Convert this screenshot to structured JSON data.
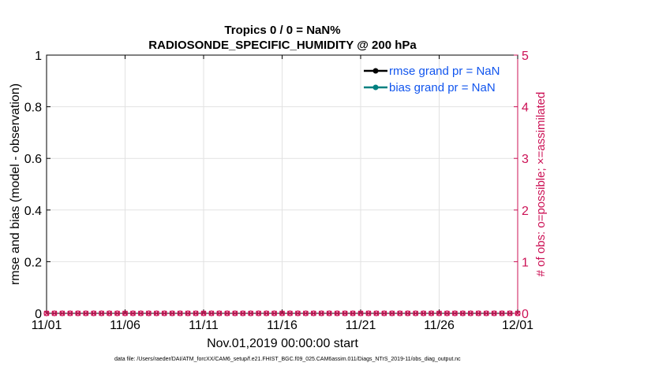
{
  "chart_data": {
    "type": "line",
    "title": "Tropics 0 / 0 = NaN%",
    "subtitle": "RADIOSONDE_SPECIFIC_HUMIDITY @ 200 hPa",
    "xlabel": "Nov.01,2019 00:00:00 start",
    "ylabel": "rmse and bias (model - observation)",
    "y2label": "# of obs: o=possible; ×=assimilated",
    "x_ticks": [
      "11/01",
      "11/06",
      "11/11",
      "11/16",
      "11/21",
      "11/26",
      "12/01"
    ],
    "y_ticks": [
      "0",
      "0.2",
      "0.4",
      "0.6",
      "0.8",
      "1"
    ],
    "y2_ticks": [
      "0",
      "1",
      "2",
      "3",
      "4",
      "5"
    ],
    "xlim": [
      0,
      30
    ],
    "ylim": [
      0,
      1
    ],
    "y2lim": [
      0,
      5
    ],
    "grid": true,
    "legend_position": "top-right",
    "series": [
      {
        "name": "rmse grand pr = NaN",
        "color": "#000000",
        "marker": "circle",
        "values": []
      },
      {
        "name": "bias grand pr = NaN",
        "color": "#008080",
        "marker": "circle",
        "values": []
      },
      {
        "name": "possible obs",
        "color": "#cc1155",
        "marker": "circle",
        "axis": "right",
        "x": [
          0,
          0.5,
          1,
          1.5,
          2,
          2.5,
          3,
          3.5,
          4,
          4.5,
          5,
          5.5,
          6,
          6.5,
          7,
          7.5,
          8,
          8.5,
          9,
          9.5,
          10,
          10.5,
          11,
          11.5,
          12,
          12.5,
          13,
          13.5,
          14,
          14.5,
          15,
          15.5,
          16,
          16.5,
          17,
          17.5,
          18,
          18.5,
          19,
          19.5,
          20,
          20.5,
          21,
          21.5,
          22,
          22.5,
          23,
          23.5,
          24,
          24.5,
          25,
          25.5,
          26,
          26.5,
          27,
          27.5,
          28,
          28.5,
          29,
          29.5,
          30
        ],
        "value": 0
      },
      {
        "name": "assimilated obs",
        "color": "#cc1155",
        "marker": "x",
        "axis": "right",
        "x": [
          0,
          0.5,
          1,
          1.5,
          2,
          2.5,
          3,
          3.5,
          4,
          4.5,
          5,
          5.5,
          6,
          6.5,
          7,
          7.5,
          8,
          8.5,
          9,
          9.5,
          10,
          10.5,
          11,
          11.5,
          12,
          12.5,
          13,
          13.5,
          14,
          14.5,
          15,
          15.5,
          16,
          16.5,
          17,
          17.5,
          18,
          18.5,
          19,
          19.5,
          20,
          20.5,
          21,
          21.5,
          22,
          22.5,
          23,
          23.5,
          24,
          24.5,
          25,
          25.5,
          26,
          26.5,
          27,
          27.5,
          28,
          28.5,
          29,
          29.5,
          30
        ],
        "value": 0
      }
    ],
    "footer": "data file: /Users/raeder/DAI/ATM_forcXX/CAM6_setup/f.e21.FHIST_BGC.f09_025.CAM6assim.011/Diags_NTrS_2019-11/obs_diag_output.nc"
  }
}
